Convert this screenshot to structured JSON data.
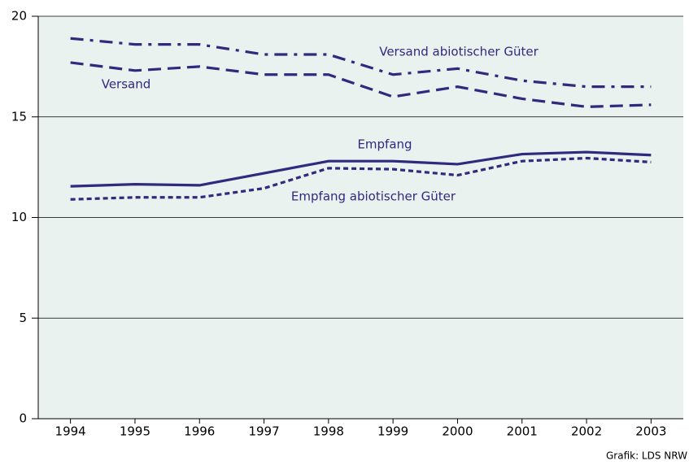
{
  "chart_data": {
    "type": "line",
    "categories": [
      "1994",
      "1995",
      "1996",
      "1997",
      "1998",
      "1999",
      "2000",
      "2001",
      "2002",
      "2003"
    ],
    "series": [
      {
        "name": "Versand abiotischer Güter",
        "color": "#2e2a7e",
        "style": "dashdot",
        "values": [
          18.9,
          18.6,
          18.6,
          18.1,
          18.1,
          17.1,
          17.4,
          16.8,
          16.5,
          16.5
        ]
      },
      {
        "name": "Versand",
        "color": "#2e2a7e",
        "style": "dashed",
        "values": [
          17.7,
          17.3,
          17.5,
          17.1,
          17.1,
          16.0,
          16.5,
          15.9,
          15.5,
          15.6
        ]
      },
      {
        "name": "Empfang",
        "color": "#2e2a7e",
        "style": "solid",
        "values": [
          11.55,
          11.65,
          11.6,
          12.2,
          12.8,
          12.8,
          12.65,
          13.15,
          13.25,
          13.1
        ]
      },
      {
        "name": "Empfang abiotischer Güter",
        "color": "#2e2a7e",
        "style": "dotted",
        "values": [
          10.9,
          11.0,
          11.0,
          11.45,
          12.45,
          12.4,
          12.1,
          12.8,
          12.95,
          12.75
        ]
      }
    ],
    "ylim": [
      0,
      20
    ],
    "yticks": [
      0,
      5,
      10,
      15,
      20
    ],
    "grid": true,
    "background": "#e9f2ee",
    "source": "Grafik: LDS NRW"
  }
}
